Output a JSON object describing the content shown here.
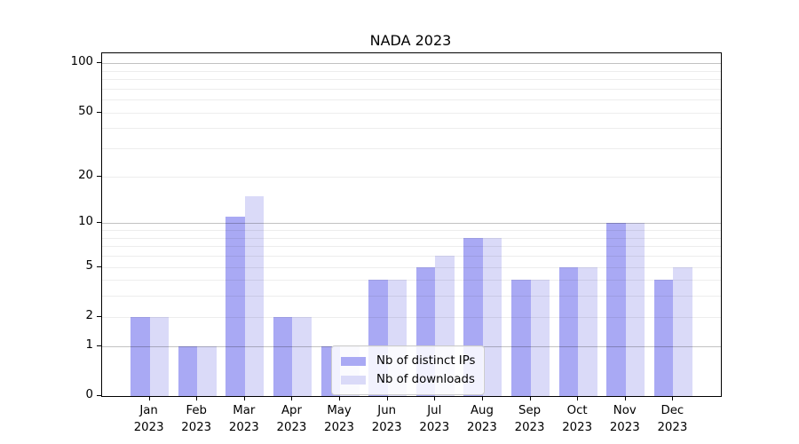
{
  "title": "NADA 2023",
  "chart_data": {
    "type": "bar",
    "title": "NADA 2023",
    "xlabel": "",
    "ylabel": "",
    "categories": [
      "Jan 2023",
      "Feb 2023",
      "Mar 2023",
      "Apr 2023",
      "May 2023",
      "Jun 2023",
      "Jul 2023",
      "Aug 2023",
      "Sep 2023",
      "Oct 2023",
      "Nov 2023",
      "Dec 2023"
    ],
    "series": [
      {
        "name": "Nb of distinct IPs",
        "color": "#a9a9f4",
        "values": [
          2,
          1,
          11,
          2,
          1,
          4,
          5,
          8,
          4,
          5,
          10,
          4
        ]
      },
      {
        "name": "Nb of downloads",
        "color": "#dadaf8",
        "values": [
          2,
          1,
          15,
          2,
          1,
          4,
          6,
          8,
          4,
          5,
          10,
          5
        ]
      }
    ],
    "y_axis": {
      "scale": "log10(1+y)",
      "ylim": [
        0,
        115
      ],
      "ticks": [
        0,
        1,
        2,
        5,
        10,
        20,
        50,
        100
      ],
      "major_gridlines": [
        1,
        10,
        100
      ],
      "minor_gridlines": [
        2,
        3,
        4,
        5,
        6,
        7,
        8,
        9,
        20,
        30,
        40,
        50,
        60,
        70,
        80,
        90
      ]
    },
    "grid": "on",
    "legend": {
      "position": "lower-center-left inside plot",
      "entries": [
        "Nb of distinct IPs",
        "Nb of downloads"
      ]
    }
  }
}
